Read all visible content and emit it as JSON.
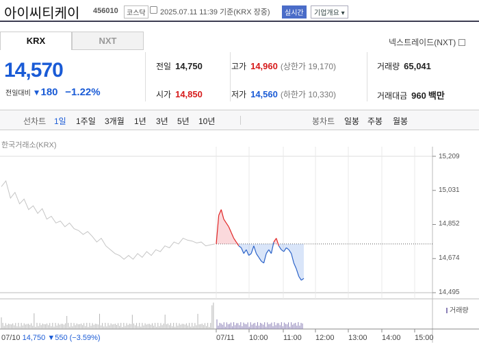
{
  "header": {
    "name": "아이씨티케이",
    "code": "456010",
    "market": "코스닥",
    "time": "2025.07.11 11:39 기준(KRX 장중)",
    "live": "실시간",
    "info": "기업개요 ▾"
  },
  "tabs": [
    {
      "label": "KRX"
    },
    {
      "label": "NXT"
    }
  ],
  "nxt_link": "넥스트레이드(NXT)",
  "price": {
    "current": "14,570",
    "change_label": "전일대비",
    "change_icon": "down-triangle-icon",
    "change": "180",
    "change_pct": "−1.22%"
  },
  "quote": {
    "prev_label": "전일",
    "prev": "14,750",
    "high_label": "고가",
    "high": "14,960",
    "upper_limit_label": "(상한가",
    "upper_limit": "19,170)",
    "volume_label": "거래량",
    "volume": "65,041",
    "open_label": "시가",
    "open": "14,850",
    "low_label": "저가",
    "low": "14,560",
    "lower_limit_label": "(하한가",
    "lower_limit": "10,330)",
    "value_label": "거래대금",
    "value": "960",
    "value_unit": "백만"
  },
  "period": {
    "line_label": "선차트",
    "line_options": [
      "1일",
      "1주일",
      "3개월",
      "1년",
      "3년",
      "5년",
      "10년"
    ],
    "selected": "1일",
    "candle_label": "봉차트",
    "candle_options": [
      "일봉",
      "주봉",
      "월봉"
    ]
  },
  "chart_data": {
    "type": "line",
    "exchange_label": "한국거래소(KRX)",
    "y_ticks": [
      "15,209",
      "15,031",
      "14,852",
      "14,674",
      "14,495"
    ],
    "ylim": [
      14495,
      15209
    ],
    "x_ticks": [
      "07/11",
      "10:00",
      "11:00",
      "12:00",
      "13:00",
      "14:00",
      "15:00"
    ],
    "reference_price": 14750,
    "volume_legend": "거래량",
    "prev_day": {
      "date": "07/10",
      "close": "14,750",
      "change_icon": "down-triangle-icon",
      "change": "550",
      "change_pct": "(−3.59%)",
      "y": [
        15050,
        15080,
        14990,
        15020,
        14960,
        14985,
        14930,
        14950,
        14910,
        14935,
        14880,
        14895,
        14860,
        14870,
        14840,
        14860,
        14830,
        14820,
        14800,
        14815,
        14790,
        14760,
        14780,
        14740,
        14720,
        14700,
        14690,
        14670,
        14690,
        14670,
        14700,
        14680,
        14710,
        14690,
        14720,
        14710,
        14740,
        14730,
        14760,
        14750,
        14780,
        14770,
        14765,
        14755,
        14760,
        14740,
        14745,
        14750
      ]
    },
    "today": {
      "y": [
        14750,
        14900,
        14930,
        14880,
        14860,
        14840,
        14810,
        14780,
        14760,
        14740,
        14730,
        14700,
        14720,
        14690,
        14700,
        14740,
        14700,
        14680,
        14660,
        14650,
        14700,
        14720,
        14700,
        14760,
        14780,
        14740,
        14720,
        14710,
        14730,
        14720,
        14700,
        14650,
        14620,
        14580,
        14560,
        14570
      ]
    }
  }
}
